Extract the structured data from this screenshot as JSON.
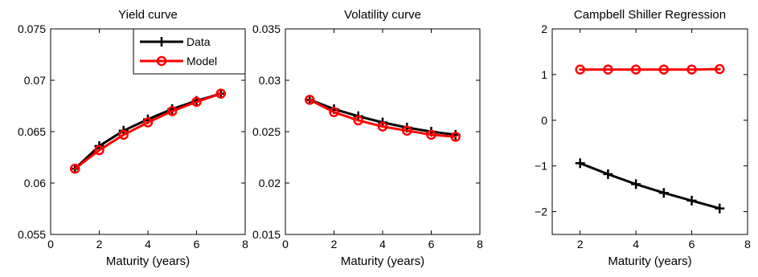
{
  "chart_data": [
    {
      "type": "line",
      "title": "Yield curve",
      "xlabel": "Maturity (years)",
      "ylabel": "",
      "xlim": [
        0,
        8
      ],
      "ylim": [
        0.055,
        0.075
      ],
      "xticks": [
        0,
        2,
        4,
        6,
        8
      ],
      "xtick_labels": [
        "0",
        "2",
        "4",
        "6",
        "8"
      ],
      "yticks": [
        0.055,
        0.06,
        0.065,
        0.07,
        0.075
      ],
      "ytick_labels": [
        "0.055",
        "0.06",
        "0.065",
        "0.07",
        "0.075"
      ],
      "grid": false,
      "legend": "top-right",
      "x": [
        1,
        2,
        3,
        4,
        5,
        6,
        7
      ],
      "series": [
        {
          "name": "Data",
          "color": "#000000",
          "marker": "plus",
          "values": [
            0.0614,
            0.0636,
            0.0651,
            0.0662,
            0.0672,
            0.068,
            0.0687
          ]
        },
        {
          "name": "Model",
          "color": "#ff0000",
          "marker": "circle",
          "values": [
            0.0614,
            0.0632,
            0.0647,
            0.0659,
            0.067,
            0.0679,
            0.0687
          ]
        }
      ]
    },
    {
      "type": "line",
      "title": "Volatility curve",
      "xlabel": "Maturity (years)",
      "ylabel": "",
      "xlim": [
        0,
        8
      ],
      "ylim": [
        0.015,
        0.035
      ],
      "xticks": [
        0,
        2,
        4,
        6,
        8
      ],
      "xtick_labels": [
        "0",
        "2",
        "4",
        "6",
        "8"
      ],
      "yticks": [
        0.015,
        0.02,
        0.025,
        0.03,
        0.035
      ],
      "ytick_labels": [
        "0.015",
        "0.02",
        "0.025",
        "0.03",
        "0.035"
      ],
      "grid": false,
      "x": [
        1,
        2,
        3,
        4,
        5,
        6,
        7
      ],
      "series": [
        {
          "color": "#000000",
          "marker": "plus",
          "values": [
            0.0281,
            0.0272,
            0.0265,
            0.0259,
            0.0254,
            0.025,
            0.0247
          ]
        },
        {
          "color": "#ff0000",
          "marker": "circle",
          "values": [
            0.0281,
            0.0269,
            0.0261,
            0.0255,
            0.0251,
            0.0247,
            0.0245
          ]
        }
      ]
    },
    {
      "type": "line",
      "title": "Campbell Shiller Regression",
      "xlabel": "Maturity (years)",
      "ylabel": "",
      "xlim": [
        1,
        8
      ],
      "ylim": [
        -2.5,
        2
      ],
      "xticks": [
        2,
        4,
        6,
        8
      ],
      "xtick_labels": [
        "2",
        "4",
        "6",
        "8"
      ],
      "yticks": [
        -2,
        -1,
        0,
        1,
        2
      ],
      "ytick_labels": [
        "−2",
        "−1",
        "0",
        "1",
        "2"
      ],
      "grid": false,
      "x": [
        2,
        3,
        4,
        5,
        6,
        7
      ],
      "series": [
        {
          "color": "#000000",
          "marker": "plus",
          "values": [
            -0.94,
            -1.18,
            -1.4,
            -1.59,
            -1.76,
            -1.93
          ]
        },
        {
          "color": "#ff0000",
          "marker": "circle",
          "values": [
            1.11,
            1.11,
            1.11,
            1.11,
            1.11,
            1.12
          ]
        }
      ]
    }
  ]
}
